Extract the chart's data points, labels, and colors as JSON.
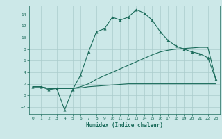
{
  "xlabel": "Humidex (Indice chaleur)",
  "bg_color": "#cce8e8",
  "grid_color": "#aacccc",
  "line_color": "#1a6b5a",
  "xlim": [
    -0.5,
    23.5
  ],
  "ylim": [
    -3.2,
    15.5
  ],
  "xticks": [
    0,
    1,
    2,
    3,
    4,
    5,
    6,
    7,
    8,
    9,
    10,
    11,
    12,
    13,
    14,
    15,
    16,
    17,
    18,
    19,
    20,
    21,
    22,
    23
  ],
  "yticks": [
    -2,
    0,
    2,
    4,
    6,
    8,
    10,
    12,
    14
  ],
  "line1_x": [
    0,
    1,
    2,
    3,
    4,
    5,
    6,
    7,
    8,
    9,
    10,
    11,
    12,
    13,
    14,
    15,
    16,
    17,
    18,
    19,
    20,
    21,
    22,
    23
  ],
  "line1_y": [
    1.5,
    1.5,
    1.0,
    1.2,
    -2.5,
    1.0,
    3.5,
    7.5,
    11.0,
    11.5,
    13.5,
    13.0,
    13.5,
    14.8,
    14.2,
    13.0,
    11.0,
    9.5,
    8.5,
    8.0,
    7.5,
    7.2,
    6.5,
    2.8
  ],
  "line2_x": [
    0,
    1,
    2,
    3,
    4,
    5,
    6,
    7,
    8,
    9,
    10,
    11,
    12,
    13,
    14,
    15,
    16,
    17,
    18,
    19,
    20,
    21,
    22,
    23
  ],
  "line2_y": [
    1.5,
    1.5,
    1.2,
    1.2,
    1.2,
    1.2,
    1.5,
    2.0,
    2.8,
    3.4,
    4.0,
    4.6,
    5.2,
    5.8,
    6.4,
    7.0,
    7.5,
    7.8,
    8.0,
    8.1,
    8.2,
    8.3,
    8.3,
    2.8
  ],
  "line3_x": [
    0,
    1,
    2,
    3,
    4,
    5,
    6,
    7,
    8,
    9,
    10,
    11,
    12,
    13,
    14,
    15,
    16,
    17,
    18,
    19,
    20,
    21,
    22,
    23
  ],
  "line3_y": [
    1.5,
    1.5,
    1.2,
    1.2,
    1.2,
    1.2,
    1.3,
    1.5,
    1.6,
    1.7,
    1.8,
    1.9,
    2.0,
    2.0,
    2.0,
    2.0,
    2.0,
    2.0,
    2.0,
    2.0,
    2.0,
    2.0,
    2.0,
    2.0
  ],
  "marker": "^",
  "marker_size": 2.5,
  "figwidth": 3.2,
  "figheight": 2.0,
  "dpi": 100
}
